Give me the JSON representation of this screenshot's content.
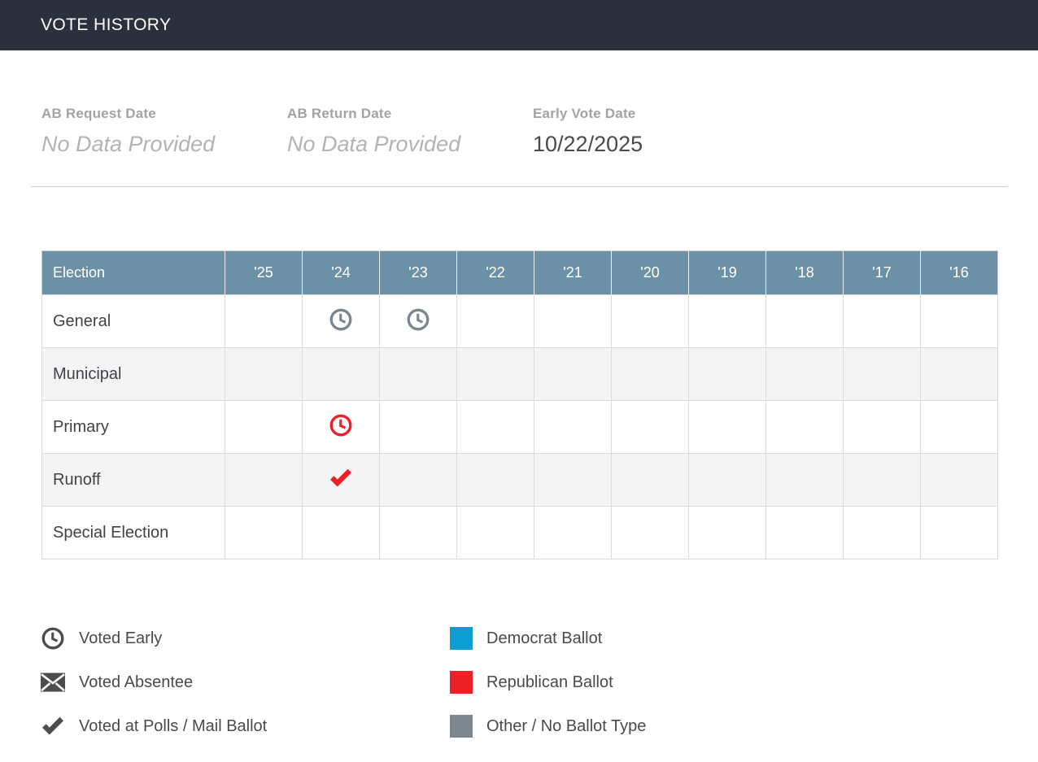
{
  "header": {
    "title": "VOTE HISTORY"
  },
  "fields": [
    {
      "label": "AB Request Date",
      "value": "No Data Provided",
      "no_data": true
    },
    {
      "label": "AB Return Date",
      "value": "No Data Provided",
      "no_data": true
    },
    {
      "label": "Early Vote Date",
      "value": "10/22/2025",
      "no_data": false
    }
  ],
  "table": {
    "columns": [
      "Election",
      "'25",
      "'24",
      "'23",
      "'22",
      "'21",
      "'20",
      "'19",
      "'18",
      "'17",
      "'16"
    ],
    "rows": [
      {
        "label": "General",
        "cells": [
          null,
          {
            "method": "voted-early",
            "ballot": "other"
          },
          {
            "method": "voted-early",
            "ballot": "other"
          },
          null,
          null,
          null,
          null,
          null,
          null,
          null
        ]
      },
      {
        "label": "Municipal",
        "cells": [
          null,
          null,
          null,
          null,
          null,
          null,
          null,
          null,
          null,
          null
        ]
      },
      {
        "label": "Primary",
        "cells": [
          null,
          {
            "method": "voted-early",
            "ballot": "republican"
          },
          null,
          null,
          null,
          null,
          null,
          null,
          null,
          null
        ]
      },
      {
        "label": "Runoff",
        "cells": [
          null,
          {
            "method": "voted-polls-mail",
            "ballot": "republican"
          },
          null,
          null,
          null,
          null,
          null,
          null,
          null,
          null
        ]
      },
      {
        "label": "Special Election",
        "cells": [
          null,
          null,
          null,
          null,
          null,
          null,
          null,
          null,
          null,
          null
        ]
      }
    ]
  },
  "legend": {
    "left": [
      {
        "icon": "clock-icon",
        "label": "Voted Early"
      },
      {
        "icon": "envelope-icon",
        "label": "Voted Absentee"
      },
      {
        "icon": "check-icon",
        "label": "Voted at Polls / Mail Ballot"
      }
    ],
    "right": [
      {
        "ballot": "democrat",
        "label": "Democrat Ballot"
      },
      {
        "ballot": "republican",
        "label": "Republican Ballot"
      },
      {
        "ballot": "other",
        "label": "Other / No Ballot Type"
      }
    ]
  },
  "colors": {
    "topbar_bg": "#2a303d",
    "table_header_bg": "#6c91a6",
    "ballot_democrat": "#0b9dd4",
    "ballot_republican": "#ed2027",
    "ballot_other": "#7d858f",
    "legend_icon_gray": "#4d4d4d"
  }
}
